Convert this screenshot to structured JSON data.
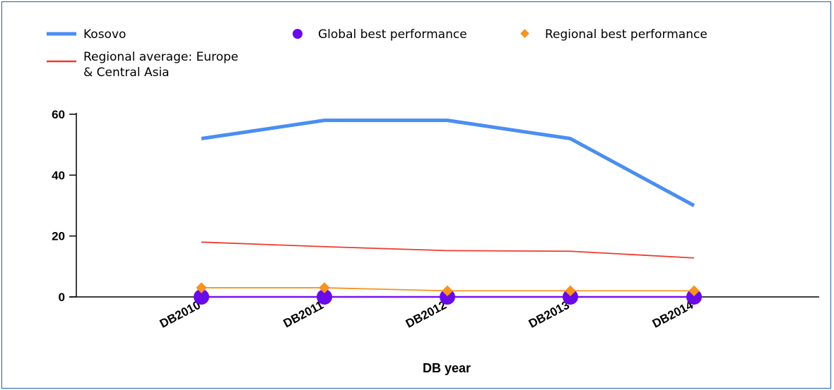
{
  "chart_data": {
    "type": "line",
    "title": "",
    "xlabel": "DB year",
    "ylabel": "",
    "categories": [
      "DB2010",
      "DB2011",
      "DB2012",
      "DB2013",
      "DB2014"
    ],
    "ylim": [
      0,
      60
    ],
    "yticks": [
      0,
      20,
      40,
      60
    ],
    "grid": false,
    "legend_position": "top",
    "series": [
      {
        "name": "Kosovo",
        "style": "line",
        "color": "#4a8ef0",
        "values": [
          52,
          58,
          58,
          52,
          30
        ]
      },
      {
        "name": "Regional average: Europe & Central Asia",
        "style": "line",
        "color": "#ee3b2e",
        "values": [
          18,
          16.5,
          15.2,
          15,
          12.8
        ]
      },
      {
        "name": "Global best performance",
        "style": "marker-circle",
        "color": "#6a0ae8",
        "values": [
          0,
          0,
          0,
          0,
          0
        ]
      },
      {
        "name": "Regional best performance",
        "style": "marker-diamond",
        "color": "#f7931e",
        "values": [
          3,
          3,
          2,
          2,
          2
        ]
      }
    ]
  },
  "legend": {
    "kosovo": "Kosovo",
    "regional_average_line1": "Regional average: Europe",
    "regional_average_line2": "& Central Asia",
    "global_best": "Global best performance",
    "regional_best": "Regional best performance"
  }
}
